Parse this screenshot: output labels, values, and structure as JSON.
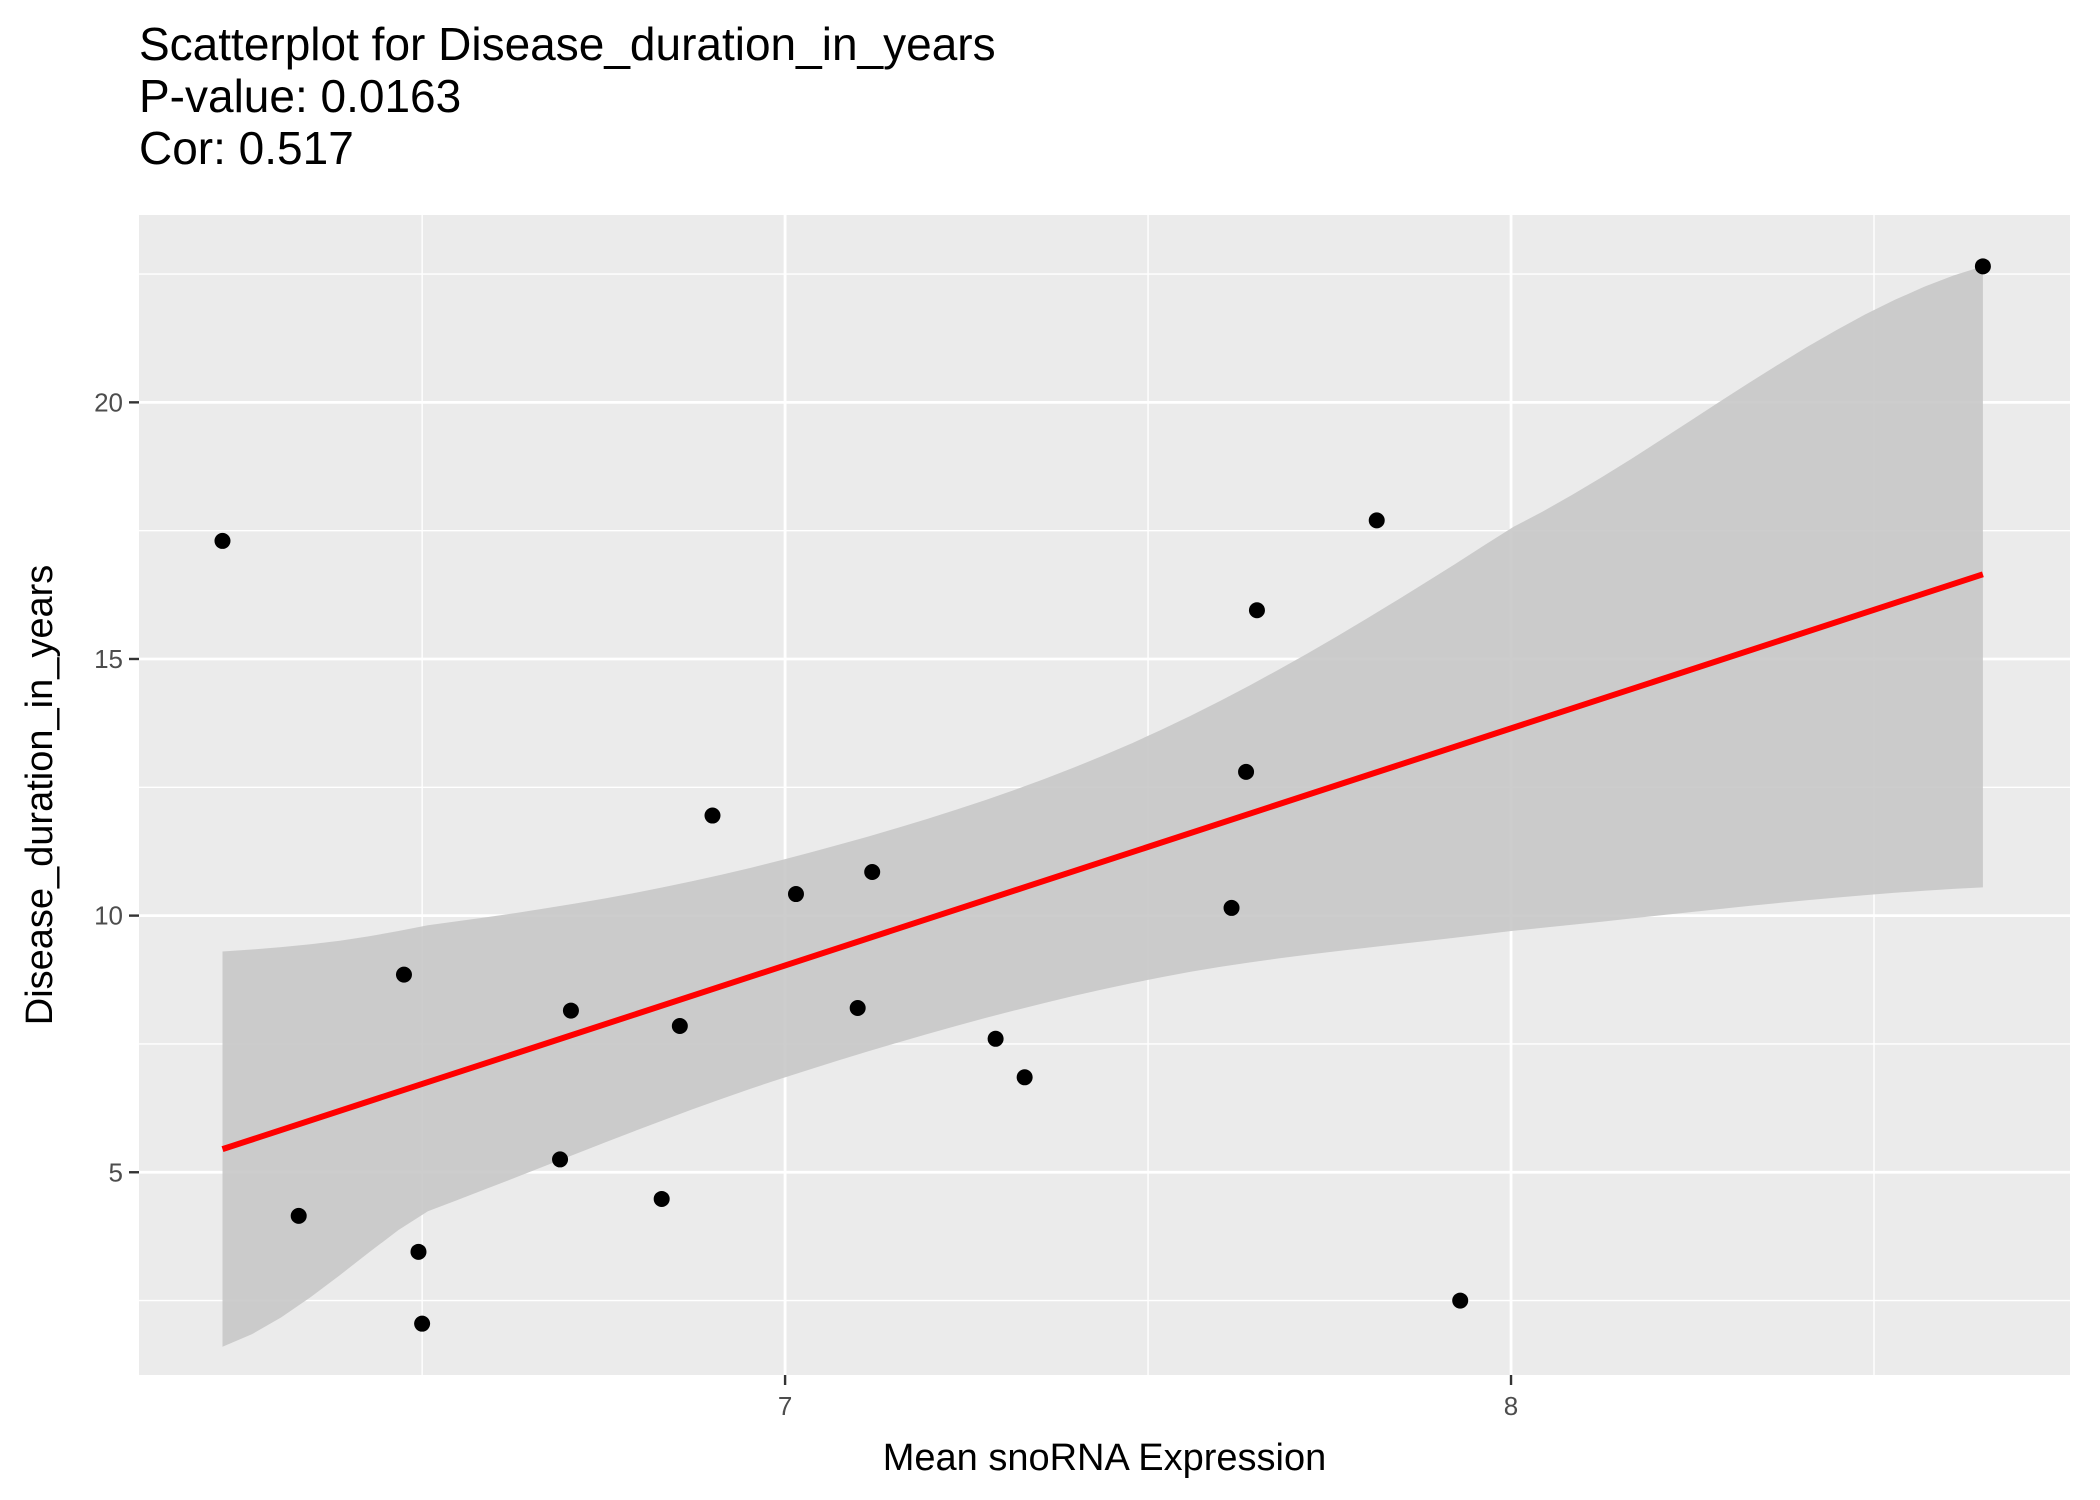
{
  "chart_data": {
    "type": "scatter",
    "title": "Scatterplot for Disease_duration_in_years",
    "subtitle_lines": [
      "P-value: 0.0163",
      "Cor: 0.517"
    ],
    "xlabel": "Mean snoRNA Expression",
    "ylabel": "Disease_duration_in_years",
    "xlim": [
      6.11,
      8.77
    ],
    "ylim": [
      1.05,
      23.65
    ],
    "x_ticks": [
      7,
      8
    ],
    "x_tick_labels": [
      "7",
      "8"
    ],
    "y_ticks": [
      5,
      10,
      15,
      20
    ],
    "y_tick_labels": [
      "5",
      "10",
      "15",
      "20"
    ],
    "grid": true,
    "background": "#ebebeb",
    "point_color": "#000000",
    "line_color": "#ff0000",
    "band_color": "#c8c8c8",
    "points": [
      {
        "x": 6.225,
        "y": 17.3
      },
      {
        "x": 6.33,
        "y": 4.15
      },
      {
        "x": 6.475,
        "y": 8.85
      },
      {
        "x": 6.495,
        "y": 3.45
      },
      {
        "x": 6.5,
        "y": 2.05
      },
      {
        "x": 6.69,
        "y": 5.25
      },
      {
        "x": 6.705,
        "y": 8.15
      },
      {
        "x": 6.83,
        "y": 4.48
      },
      {
        "x": 6.855,
        "y": 7.85
      },
      {
        "x": 6.9,
        "y": 11.95
      },
      {
        "x": 7.015,
        "y": 10.42
      },
      {
        "x": 7.1,
        "y": 8.2
      },
      {
        "x": 7.12,
        "y": 10.85
      },
      {
        "x": 7.29,
        "y": 7.6
      },
      {
        "x": 7.33,
        "y": 6.85
      },
      {
        "x": 7.615,
        "y": 10.15
      },
      {
        "x": 7.635,
        "y": 12.8
      },
      {
        "x": 7.65,
        "y": 15.95
      },
      {
        "x": 7.815,
        "y": 17.7
      },
      {
        "x": 7.93,
        "y": 2.5
      },
      {
        "x": 8.65,
        "y": 22.65
      }
    ],
    "regression_line": {
      "x": [
        6.225,
        8.65
      ],
      "y": [
        5.45,
        16.65
      ]
    },
    "confidence_band": {
      "x": [
        6.225,
        6.5,
        7.0,
        7.5,
        8.0,
        8.65
      ],
      "lower": [
        1.6,
        4.2,
        6.85,
        8.75,
        9.7,
        10.55
      ],
      "upper": [
        9.3,
        9.8,
        11.1,
        13.5,
        17.55,
        22.65
      ]
    }
  }
}
